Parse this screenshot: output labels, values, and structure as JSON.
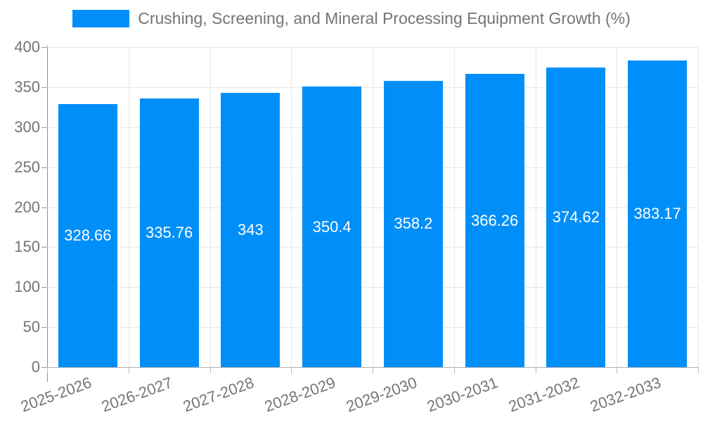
{
  "chart_data": {
    "type": "bar",
    "title": "Crushing, Screening, and Mineral Processing Equipment Growth (%)",
    "categories": [
      "2025-2026",
      "2026-2027",
      "2027-2028",
      "2028-2029",
      "2029-2030",
      "2030-2031",
      "2031-2032",
      "2032-2033"
    ],
    "values": [
      328.66,
      335.76,
      343,
      350.4,
      358.2,
      366.26,
      374.62,
      383.17
    ],
    "value_labels": [
      "328.66",
      "335.76",
      "343",
      "350.4",
      "358.2",
      "366.26",
      "374.62",
      "383.17"
    ],
    "xlabel": "",
    "ylabel": "",
    "ylim": [
      0,
      400
    ],
    "yticks": [
      0,
      50,
      100,
      150,
      200,
      250,
      300,
      350,
      400
    ],
    "grid": true,
    "legend_position": "top",
    "x_label_rotation_deg": -20,
    "colors": {
      "bar": "#008FF8",
      "bar_value_label": "#ffffff",
      "axis_text": "#757575",
      "legend_text": "#757575",
      "gridline": "#e7e7e7"
    }
  }
}
